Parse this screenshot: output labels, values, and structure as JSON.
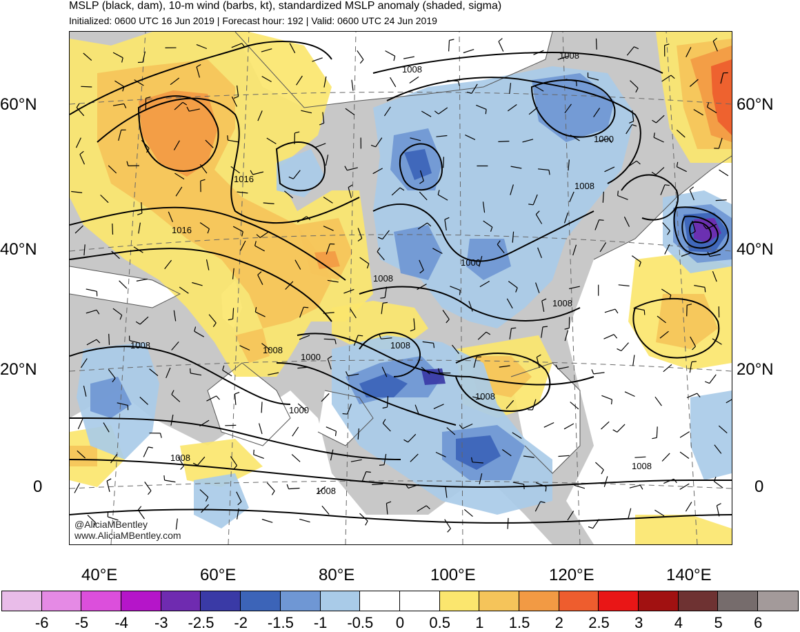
{
  "header": {
    "title": "MSLP (black, dam), 10-m wind (barbs, kt), standardized MSLP anomaly (shaded, sigma)",
    "subtitle": "Initialized: 0600 UTC 16 Jun 2019 | Forecast hour: 192 | Valid: 0600 UTC 24 Jun 2019"
  },
  "map": {
    "latitude_labels": [
      "60°N",
      "40°N",
      "20°N",
      "0"
    ],
    "longitude_labels": [
      "40°E",
      "60°E",
      "80°E",
      "100°E",
      "120°E",
      "140°E"
    ],
    "isobar_labels": [
      "1008",
      "1008",
      "1016",
      "1016",
      "1000",
      "1008",
      "1000",
      "1008",
      "1008",
      "1008",
      "1000",
      "1008",
      "1008",
      "1008",
      "1000",
      "1008",
      "1008",
      "1008"
    ],
    "credit_handle": "@AliciaMBentley",
    "credit_site": "www.AliciaMBentley.com",
    "colors": {
      "land": "#c8c8c8",
      "ocean": "#ffffff",
      "contour": "#000000"
    }
  },
  "colorbar": {
    "ticks": [
      "-6",
      "-5",
      "-4",
      "-3",
      "-2.5",
      "-2",
      "-1.5",
      "-1",
      "-0.5",
      "0",
      "0.5",
      "1",
      "1.5",
      "2",
      "2.5",
      "3",
      "4",
      "5",
      "6"
    ],
    "colors": [
      "#e9bce9",
      "#e58ae5",
      "#dc4fdc",
      "#b515c9",
      "#6f2bb0",
      "#3a3aa6",
      "#3c64b8",
      "#6f97d4",
      "#a9cbe8",
      "#ffffff",
      "#ffffff",
      "#fbe66e",
      "#f5c45a",
      "#f29a44",
      "#ee5d2e",
      "#e91616",
      "#a11111",
      "#6e3232",
      "#766c6c",
      "#a39a9a"
    ]
  }
}
